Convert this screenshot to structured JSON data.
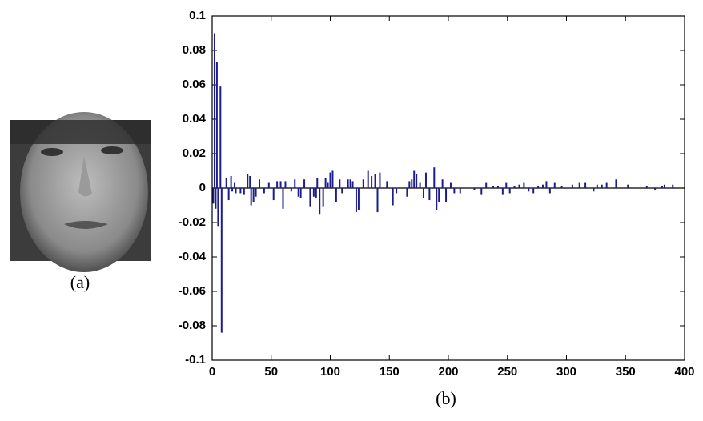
{
  "captions": {
    "a": "(a)",
    "b": "(b)"
  },
  "chart_data": {
    "type": "stem",
    "color": "#1c1c8e",
    "grid": false,
    "zero_line": true,
    "xlim": [
      0,
      400
    ],
    "xticks": [
      0,
      50,
      100,
      150,
      200,
      250,
      300,
      350,
      400
    ],
    "ylim": [
      -0.1,
      0.1
    ],
    "yticks": [
      -0.1,
      -0.08,
      -0.06,
      -0.04,
      -0.02,
      0,
      0.02,
      0.04,
      0.06,
      0.08,
      0.1
    ],
    "x": [
      1,
      2,
      3,
      4,
      5,
      7,
      8,
      12,
      14,
      16,
      17,
      19,
      20,
      24,
      27,
      30,
      32,
      33,
      35,
      37,
      40,
      44,
      48,
      52,
      55,
      58,
      60,
      62,
      67,
      70,
      73,
      75,
      78,
      83,
      86,
      88,
      89,
      91,
      94,
      96,
      98,
      100,
      102,
      105,
      108,
      110,
      115,
      117,
      119,
      122,
      124,
      128,
      132,
      135,
      138,
      140,
      142,
      148,
      153,
      156,
      165,
      167,
      169,
      171,
      173,
      176,
      179,
      181,
      184,
      188,
      190,
      192,
      195,
      198,
      202,
      205,
      210,
      222,
      228,
      232,
      238,
      242,
      246,
      249,
      252,
      256,
      260,
      264,
      268,
      272,
      276,
      280,
      283,
      286,
      290,
      296,
      305,
      311,
      316,
      323,
      326,
      330,
      334,
      342,
      352,
      368,
      375,
      381,
      383,
      390
    ],
    "values": [
      -0.009,
      0.09,
      -0.012,
      0.073,
      -0.022,
      0.059,
      -0.084,
      0.006,
      -0.007,
      0.007,
      -0.002,
      0.003,
      -0.003,
      -0.003,
      -0.004,
      0.008,
      0.007,
      -0.01,
      -0.008,
      -0.005,
      0.005,
      -0.003,
      0.003,
      -0.007,
      0.004,
      0.004,
      -0.012,
      0.004,
      -0.002,
      0.005,
      -0.005,
      -0.006,
      0.005,
      -0.011,
      -0.005,
      -0.006,
      0.006,
      -0.015,
      -0.011,
      0.006,
      0.003,
      0.009,
      0.01,
      -0.008,
      0.005,
      -0.003,
      0.005,
      0.005,
      0.004,
      -0.014,
      -0.013,
      0.005,
      0.01,
      0.007,
      0.008,
      -0.014,
      0.009,
      0.004,
      -0.01,
      -0.003,
      -0.005,
      0.004,
      0.005,
      0.01,
      0.008,
      0.003,
      -0.006,
      0.009,
      -0.007,
      0.012,
      -0.013,
      -0.008,
      0.005,
      -0.008,
      0.003,
      -0.003,
      -0.003,
      -0.001,
      -0.004,
      0.003,
      0.001,
      0.001,
      -0.004,
      0.003,
      -0.003,
      0.001,
      0.002,
      0.003,
      -0.002,
      -0.003,
      0.001,
      0.002,
      0.004,
      -0.003,
      0.003,
      0.001,
      0.002,
      0.003,
      0.003,
      -0.002,
      0.002,
      0.002,
      0.003,
      0.005,
      0.002,
      0.001,
      -0.001,
      0.001,
      0.002,
      0.002
    ]
  }
}
